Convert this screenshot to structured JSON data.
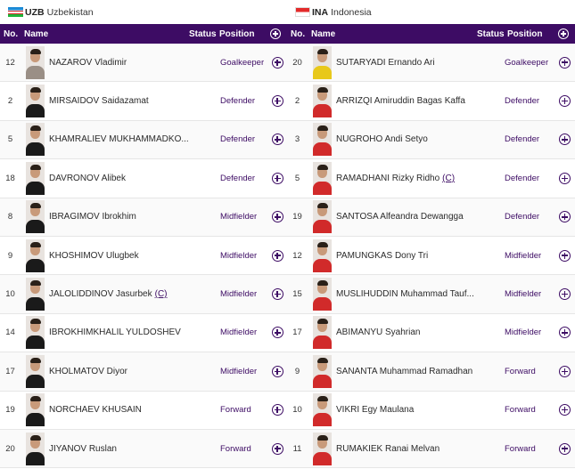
{
  "columns": {
    "no": "No.",
    "name": "Name",
    "status": "Status",
    "position": "Position"
  },
  "teams": [
    {
      "code": "UZB",
      "name": "Uzbekistan",
      "flag": "uzbekistan-flag",
      "shirt_color": "#1a1a1a",
      "players": [
        {
          "no": "12",
          "name": "NAZAROV Vladimir",
          "captain": "",
          "position": "Goalkeeper",
          "shirt": "#9a8f86"
        },
        {
          "no": "2",
          "name": "MIRSAIDOV Saidazamat",
          "captain": "",
          "position": "Defender",
          "shirt": "#1a1a1a"
        },
        {
          "no": "5",
          "name": "KHAMRALIEV MUKHAMMADKO...",
          "captain": "",
          "position": "Defender",
          "shirt": "#1a1a1a"
        },
        {
          "no": "18",
          "name": "DAVRONOV Alibek",
          "captain": "",
          "position": "Defender",
          "shirt": "#1a1a1a"
        },
        {
          "no": "8",
          "name": "IBRAGIMOV Ibrokhim",
          "captain": "",
          "position": "Midfielder",
          "shirt": "#1a1a1a"
        },
        {
          "no": "9",
          "name": "KHOSHIMOV Ulugbek",
          "captain": "",
          "position": "Midfielder",
          "shirt": "#1a1a1a"
        },
        {
          "no": "10",
          "name": "JALOLIDDINOV Jasurbek",
          "captain": "(C)",
          "position": "Midfielder",
          "shirt": "#1a1a1a"
        },
        {
          "no": "14",
          "name": "IBROKHIMKHALIL YULDOSHEV",
          "captain": "",
          "position": "Midfielder",
          "shirt": "#1a1a1a"
        },
        {
          "no": "17",
          "name": "KHOLMATOV Diyor",
          "captain": "",
          "position": "Midfielder",
          "shirt": "#1a1a1a"
        },
        {
          "no": "19",
          "name": "NORCHAEV KHUSAIN",
          "captain": "",
          "position": "Forward",
          "shirt": "#1a1a1a"
        },
        {
          "no": "20",
          "name": "JIYANOV Ruslan",
          "captain": "",
          "position": "Forward",
          "shirt": "#1a1a1a"
        }
      ]
    },
    {
      "code": "INA",
      "name": "Indonesia",
      "flag": "indonesia-flag",
      "shirt_color": "#d12a2a",
      "players": [
        {
          "no": "20",
          "name": "SUTARYADI Ernando Ari",
          "captain": "",
          "position": "Goalkeeper",
          "shirt": "#e8c81a"
        },
        {
          "no": "2",
          "name": "ARRIZQI Amiruddin Bagas Kaffa",
          "captain": "",
          "position": "Defender",
          "shirt": "#d12a2a"
        },
        {
          "no": "3",
          "name": "NUGROHO Andi Setyo",
          "captain": "",
          "position": "Defender",
          "shirt": "#d12a2a"
        },
        {
          "no": "5",
          "name": "RAMADHANI Rizky Ridho",
          "captain": "(C)",
          "position": "Defender",
          "shirt": "#d12a2a"
        },
        {
          "no": "19",
          "name": "SANTOSA Alfeandra Dewangga",
          "captain": "",
          "position": "Defender",
          "shirt": "#d12a2a"
        },
        {
          "no": "12",
          "name": "PAMUNGKAS Dony Tri",
          "captain": "",
          "position": "Midfielder",
          "shirt": "#d12a2a"
        },
        {
          "no": "15",
          "name": "MUSLIHUDDIN Muhammad Tauf...",
          "captain": "",
          "position": "Midfielder",
          "shirt": "#d12a2a"
        },
        {
          "no": "17",
          "name": "ABIMANYU Syahrian",
          "captain": "",
          "position": "Midfielder",
          "shirt": "#d12a2a"
        },
        {
          "no": "9",
          "name": "SANANTA Muhammad Ramadhan",
          "captain": "",
          "position": "Forward",
          "shirt": "#d12a2a"
        },
        {
          "no": "10",
          "name": "VIKRI Egy Maulana",
          "captain": "",
          "position": "Forward",
          "shirt": "#d12a2a"
        },
        {
          "no": "11",
          "name": "RUMAKIEK Ranai Melvan",
          "captain": "",
          "position": "Forward",
          "shirt": "#d12a2a"
        }
      ]
    }
  ],
  "colors": {
    "header_bg": "#3d0c64",
    "accent": "#3d0c64"
  },
  "icons": {
    "add": "plus-circle-icon"
  }
}
